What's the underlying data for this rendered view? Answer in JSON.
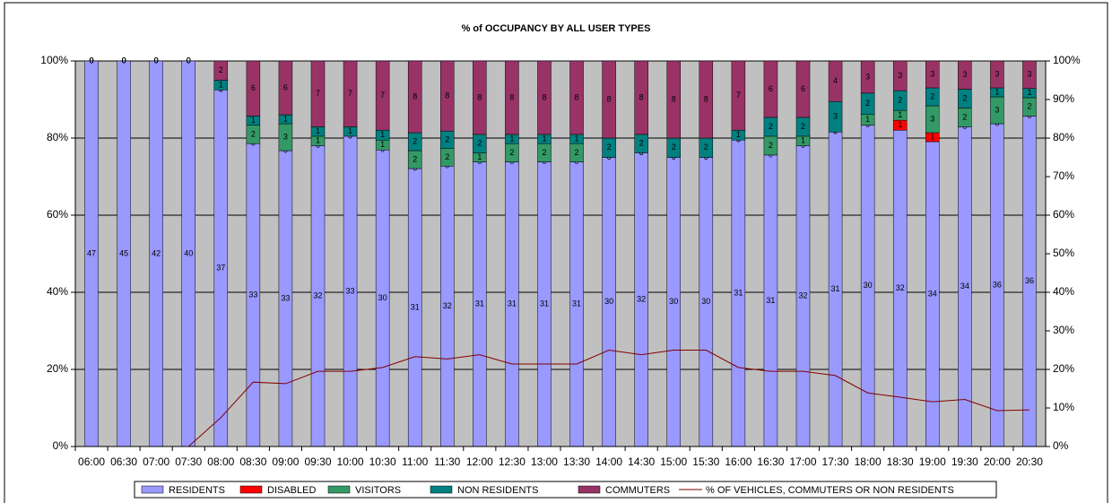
{
  "chart_data": {
    "type": "bar",
    "stacking": "percent",
    "title": "% of OCCUPANCY BY ALL USER TYPES",
    "categories": [
      "06:00",
      "06:30",
      "07:00",
      "07:30",
      "08:00",
      "08:30",
      "09:00",
      "09:30",
      "10:00",
      "10:30",
      "11:00",
      "11:30",
      "12:00",
      "12:30",
      "13:00",
      "13:30",
      "14:00",
      "14:30",
      "15:00",
      "15:30",
      "16:00",
      "16:30",
      "17:00",
      "17:30",
      "18:00",
      "18:30",
      "19:00",
      "19:30",
      "20:00",
      "20:30"
    ],
    "series": [
      {
        "name": "RESIDENTS",
        "color": "#9999ff",
        "values": [
          47,
          45,
          42,
          40,
          37,
          33,
          33,
          32,
          33,
          30,
          31,
          32,
          31,
          31,
          31,
          31,
          30,
          32,
          30,
          30,
          31,
          31,
          32,
          31,
          30,
          32,
          34,
          34,
          36,
          36
        ]
      },
      {
        "name": "DISABLED",
        "color": "#ff0000",
        "values": [
          0,
          0,
          0,
          0,
          0,
          0,
          0,
          0,
          0,
          0,
          0,
          0,
          0,
          0,
          0,
          0,
          0,
          0,
          0,
          0,
          0,
          0,
          0,
          0,
          0,
          1,
          1,
          0,
          0,
          0
        ]
      },
      {
        "name": "VISITORS",
        "color": "#339966",
        "values": [
          0,
          0,
          0,
          0,
          0,
          2,
          3,
          1,
          0,
          1,
          2,
          2,
          1,
          2,
          2,
          2,
          0,
          0,
          0,
          0,
          0,
          2,
          1,
          0,
          1,
          1,
          3,
          2,
          3,
          2
        ]
      },
      {
        "name": "NON RESIDENTS",
        "color": "#008080",
        "values": [
          0,
          0,
          0,
          0,
          1,
          1,
          1,
          1,
          1,
          1,
          2,
          2,
          2,
          1,
          1,
          1,
          2,
          2,
          2,
          2,
          1,
          2,
          2,
          3,
          2,
          2,
          2,
          2,
          1,
          1
        ]
      },
      {
        "name": "COMMUTERS",
        "color": "#993366",
        "values": [
          0,
          0,
          0,
          0,
          2,
          6,
          6,
          7,
          7,
          7,
          8,
          8,
          8,
          8,
          8,
          8,
          8,
          8,
          8,
          8,
          7,
          6,
          6,
          4,
          3,
          3,
          3,
          3,
          3,
          3
        ]
      },
      {
        "name": "% OF VEHICLES, COMMUTERS OR NON RESIDENTS",
        "color": "#800000",
        "type": "line",
        "axis": "y2",
        "values": [
          0,
          0,
          0,
          0,
          7.5,
          16.7,
          16.3,
          19.5,
          19.5,
          20.5,
          23.3,
          22.7,
          23.8,
          21.4,
          21.4,
          21.4,
          25,
          23.8,
          25,
          25,
          20.5,
          19.5,
          19.5,
          18.4,
          13.9,
          12.8,
          11.6,
          12.2,
          9.3,
          9.5
        ]
      }
    ],
    "ylim": [
      0,
      100
    ],
    "yticks": [
      {
        "value": 0,
        "label": "0%"
      },
      {
        "value": 20,
        "label": "20%"
      },
      {
        "value": 40,
        "label": "40%"
      },
      {
        "value": 60,
        "label": "60%"
      },
      {
        "value": 80,
        "label": "80%"
      },
      {
        "value": 100,
        "label": "100%"
      }
    ],
    "y2lim": [
      0,
      100
    ],
    "y2ticks": [
      {
        "value": 0,
        "label": "0%"
      },
      {
        "value": 10,
        "label": "10%"
      },
      {
        "value": 20,
        "label": "20%"
      },
      {
        "value": 30,
        "label": "30%"
      },
      {
        "value": 40,
        "label": "40%"
      },
      {
        "value": 50,
        "label": "50%"
      },
      {
        "value": 60,
        "label": "60%"
      },
      {
        "value": 70,
        "label": "70%"
      },
      {
        "value": 80,
        "label": "80%"
      },
      {
        "value": 90,
        "label": "90%"
      },
      {
        "value": 100,
        "label": "100%"
      }
    ],
    "grid": true,
    "legend": "bottom"
  }
}
